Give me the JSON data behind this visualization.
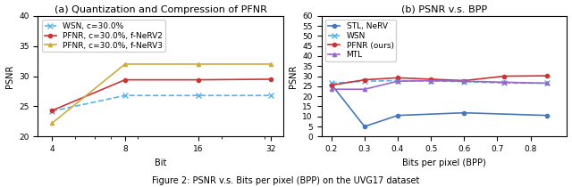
{
  "left_plot": {
    "title": "(a) Quantization and Compression of PFNR",
    "xlabel": "Bit",
    "ylabel": "PSNR",
    "xlim_log": [
      3.5,
      36
    ],
    "ylim": [
      20,
      40
    ],
    "yticks": [
      20,
      25,
      30,
      35,
      40
    ],
    "xticks": [
      4,
      8,
      16,
      32
    ],
    "series": [
      {
        "label": "WSN, c=30.0%",
        "x": [
          4,
          8,
          16,
          32
        ],
        "y": [
          24.2,
          26.8,
          26.8,
          26.8
        ],
        "color": "#56b4e9",
        "linestyle": "dashed",
        "marker": "x",
        "linewidth": 1.2,
        "markersize": 4
      },
      {
        "label": "PFNR, c=30.0%, f-NeRV2",
        "x": [
          4,
          8,
          16,
          32
        ],
        "y": [
          24.3,
          29.4,
          29.4,
          29.5
        ],
        "color": "#cc3333",
        "linestyle": "solid",
        "marker": "o",
        "linewidth": 1.2,
        "markersize": 3
      },
      {
        "label": "PFNR, c=30.0%, f-NeRV3",
        "x": [
          4,
          8,
          16,
          32
        ],
        "y": [
          22.2,
          32.0,
          32.0,
          32.0
        ],
        "color": "#ccaa44",
        "linestyle": "solid",
        "marker": "^",
        "linewidth": 1.2,
        "markersize": 3
      }
    ]
  },
  "right_plot": {
    "title": "(b) PSNR v.s. BPP",
    "xlabel": "Bits per pixel (BPP)",
    "ylabel": "PSNR",
    "xlim": [
      0.17,
      0.91
    ],
    "ylim": [
      0,
      60
    ],
    "yticks": [
      0,
      5,
      10,
      15,
      20,
      25,
      30,
      35,
      40,
      45,
      50,
      55,
      60
    ],
    "xticks": [
      0.2,
      0.3,
      0.4,
      0.5,
      0.6,
      0.7,
      0.8
    ],
    "series": [
      {
        "label": "STL, NeRV",
        "x": [
          0.2,
          0.3,
          0.4,
          0.6,
          0.85
        ],
        "y": [
          26.0,
          5.0,
          10.5,
          11.8,
          10.5
        ],
        "color": "#4477bb",
        "linestyle": "solid",
        "marker": "o",
        "linewidth": 1.2,
        "markersize": 3
      },
      {
        "label": "WSN",
        "x": [
          0.2,
          0.3,
          0.4,
          0.5,
          0.6,
          0.72,
          0.85
        ],
        "y": [
          26.5,
          27.5,
          27.8,
          27.6,
          27.3,
          26.6,
          26.5
        ],
        "color": "#56b4e9",
        "linestyle": "dashed",
        "marker": "x",
        "linewidth": 1.2,
        "markersize": 4
      },
      {
        "label": "PFNR (ours)",
        "x": [
          0.2,
          0.3,
          0.4,
          0.5,
          0.6,
          0.72,
          0.85
        ],
        "y": [
          25.5,
          28.2,
          29.2,
          28.5,
          27.8,
          30.0,
          30.2
        ],
        "color": "#cc3333",
        "linestyle": "solid",
        "marker": "o",
        "linewidth": 1.2,
        "markersize": 3
      },
      {
        "label": "MTL",
        "x": [
          0.2,
          0.3,
          0.4,
          0.5,
          0.6,
          0.72,
          0.85
        ],
        "y": [
          23.5,
          23.5,
          27.5,
          27.8,
          27.5,
          27.0,
          26.5
        ],
        "color": "#9966cc",
        "linestyle": "solid",
        "marker": "^",
        "linewidth": 1.2,
        "markersize": 3
      }
    ]
  },
  "figure_caption": "Figure 2: PSNR v.s. Bits per pixel (BPP) on the UVG17 dataset",
  "title_fontsize": 8,
  "label_fontsize": 7,
  "legend_fontsize": 6.5,
  "tick_fontsize": 6.5
}
